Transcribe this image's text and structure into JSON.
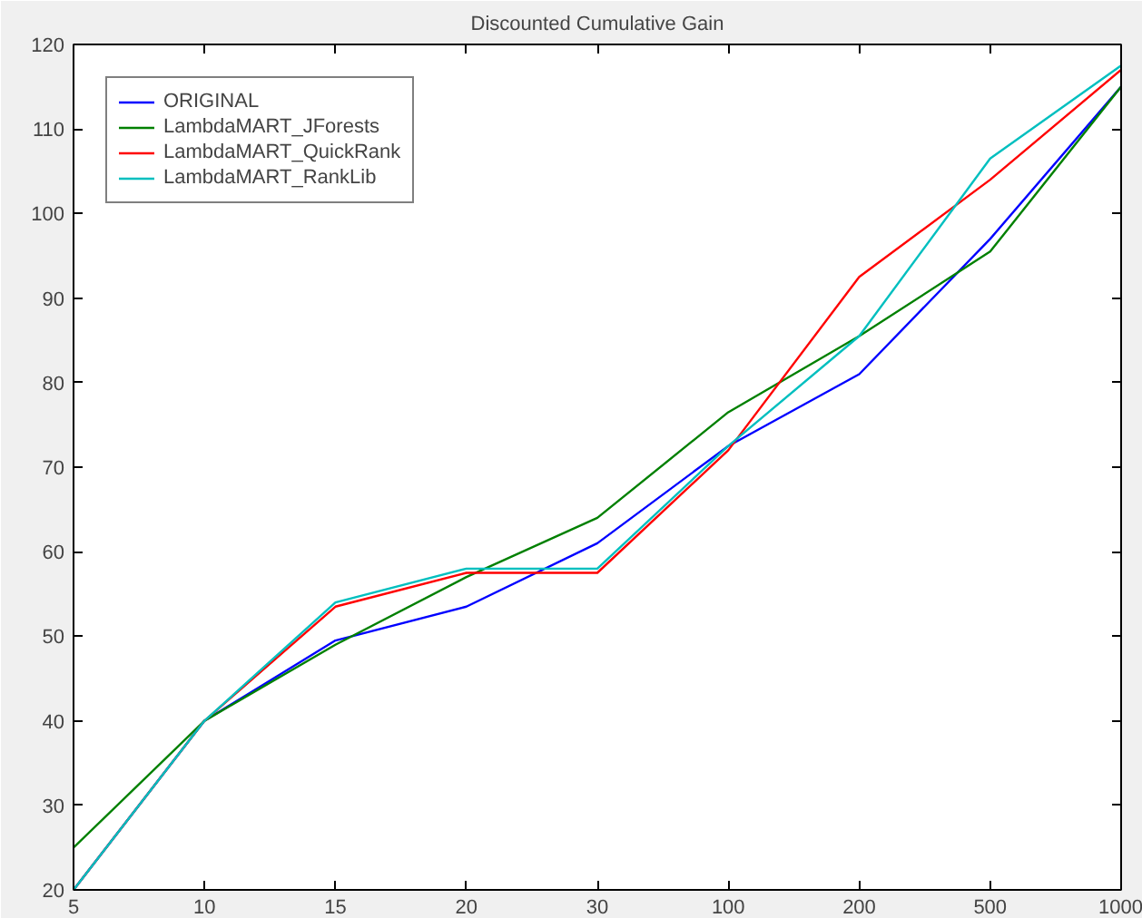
{
  "chart_data": {
    "type": "line",
    "title": "Discounted Cumulative Gain",
    "categories": [
      "5",
      "10",
      "15",
      "20",
      "30",
      "100",
      "200",
      "500",
      "1000"
    ],
    "series": [
      {
        "name": "ORIGINAL",
        "color": "#0000ff",
        "values": [
          20,
          40,
          49.5,
          53.5,
          61,
          72.5,
          81,
          97,
          115
        ]
      },
      {
        "name": "LambdaMART_JForests",
        "color": "#008000",
        "values": [
          25,
          40,
          49,
          57,
          64,
          76.5,
          85.5,
          95.5,
          115
        ]
      },
      {
        "name": "LambdaMART_QuickRank",
        "color": "#ff0000",
        "values": [
          20,
          40,
          53.5,
          57.5,
          57.5,
          72,
          92.5,
          104,
          117
        ]
      },
      {
        "name": "LambdaMART_RankLib",
        "color": "#00bfbf",
        "values": [
          20,
          40,
          54,
          58,
          58,
          72.5,
          85.5,
          106.5,
          117.5
        ]
      }
    ],
    "ylim": [
      20,
      120
    ],
    "yticks": [
      20,
      30,
      40,
      50,
      60,
      70,
      80,
      90,
      100,
      110,
      120
    ],
    "grid": false,
    "legend": "top left",
    "marker": "none",
    "line_style": "solid"
  }
}
